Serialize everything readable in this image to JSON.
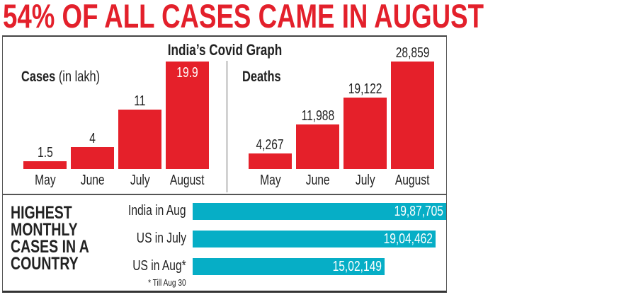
{
  "headline": "54% OF ALL CASES CAME IN AUGUST",
  "colors": {
    "headline": "#e3202b",
    "bar_red": "#e5202a",
    "bar_teal": "#06aec6"
  },
  "chart_data": [
    {
      "type": "bar",
      "title": "India’s Covid Graph",
      "panel_title": "Cases",
      "panel_unit": "(in lakh)",
      "categories": [
        "May",
        "June",
        "July",
        "August"
      ],
      "values": [
        1.5,
        4,
        11,
        19.9
      ],
      "labels": [
        "1.5",
        "4",
        "11",
        "19.9"
      ]
    },
    {
      "type": "bar",
      "panel_title": "Deaths",
      "categories": [
        "May",
        "June",
        "July",
        "August"
      ],
      "values": [
        4267,
        11988,
        19122,
        28859
      ],
      "labels": [
        "4,267",
        "11,988",
        "19,122",
        "28,859"
      ]
    },
    {
      "type": "bar",
      "orientation": "horizontal",
      "title": "HIGHEST MONTHLY CASES IN A COUNTRY",
      "title_lines": [
        "HIGHEST",
        "MONTHLY",
        "CASES IN A",
        "COUNTRY"
      ],
      "categories": [
        "India in Aug",
        "US in July",
        "US in Aug*"
      ],
      "values": [
        1987705,
        1904462,
        1502149
      ],
      "labels": [
        "19,87,705",
        "19,04,462",
        "15,02,149"
      ],
      "note": "* Till Aug 30"
    }
  ]
}
